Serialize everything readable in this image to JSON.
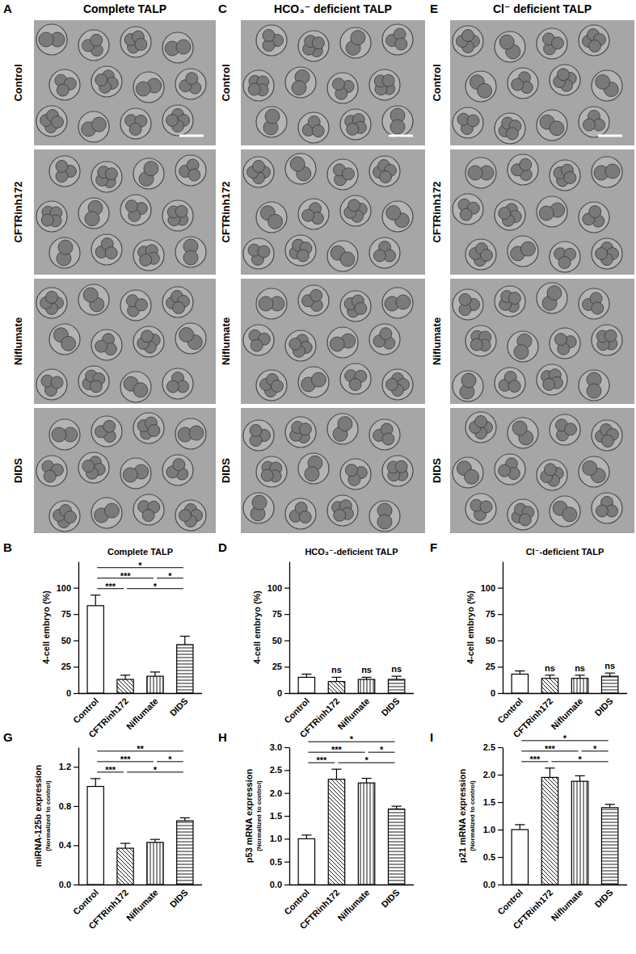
{
  "image_grid": {
    "rows": [
      "Control",
      "CFTRinh172",
      "Niflumate",
      "DIDS"
    ],
    "columns": [
      {
        "panel": "A",
        "title": "Complete TALP"
      },
      {
        "panel": "C",
        "title": "HCO₃⁻ deficient TALP"
      },
      {
        "panel": "E",
        "title": "Cl⁻ deficient TALP"
      }
    ]
  },
  "chart_data": [
    {
      "panel": "B",
      "type": "bar",
      "title": "Complete TALP",
      "ylabel": "4-cell embryo (%)",
      "categories": [
        "Control",
        "CFTRinh172",
        "Niflumate",
        "DIDS"
      ],
      "values": [
        83,
        13,
        16,
        46
      ],
      "errors": [
        10,
        4,
        4,
        8
      ],
      "color": "#ffffff",
      "ylim": [
        0,
        125
      ],
      "yticks": [
        0,
        25,
        50,
        75,
        100
      ],
      "annotations": [
        {
          "from": "Control",
          "to": "CFTRinh172",
          "text": "***"
        },
        {
          "from": "CFTRinh172",
          "to": "DIDS",
          "text": "*"
        },
        {
          "from": "Control",
          "to": "Niflumate",
          "text": "***"
        },
        {
          "from": "Niflumate",
          "to": "DIDS",
          "text": "*"
        },
        {
          "from": "Control",
          "to": "DIDS",
          "text": "*"
        }
      ]
    },
    {
      "panel": "D",
      "type": "bar",
      "title": "HCO₃⁻-deficient TALP",
      "ylabel": "4-cell embryo (%)",
      "categories": [
        "Control",
        "CFTRinh172",
        "Niflumate",
        "DIDS"
      ],
      "values": [
        15,
        11,
        13,
        13
      ],
      "errors": [
        3,
        4,
        2,
        3
      ],
      "color": "#ffffff",
      "ylim": [
        0,
        125
      ],
      "yticks": [
        0,
        25,
        50,
        75,
        100
      ],
      "annotations": [
        {
          "category": "CFTRinh172",
          "text": "ns"
        },
        {
          "category": "Niflumate",
          "text": "ns"
        },
        {
          "category": "DIDS",
          "text": "ns"
        }
      ]
    },
    {
      "panel": "F",
      "type": "bar",
      "title": "Cl⁻-deficient TALP",
      "ylabel": "4-cell embryo (%)",
      "categories": [
        "Control",
        "CFTRinh172",
        "Niflumate",
        "DIDS"
      ],
      "values": [
        18,
        14,
        14,
        16
      ],
      "errors": [
        3,
        3,
        3,
        3
      ],
      "color": "#ffffff",
      "ylim": [
        0,
        125
      ],
      "yticks": [
        0,
        25,
        50,
        75,
        100
      ],
      "annotations": [
        {
          "category": "CFTRinh172",
          "text": "ns"
        },
        {
          "category": "Niflumate",
          "text": "ns"
        },
        {
          "category": "DIDS",
          "text": "ns"
        }
      ]
    },
    {
      "panel": "G",
      "type": "bar",
      "ylabel": "miRNA-125b expression",
      "ylabel_note": "(Normalized to control)",
      "categories": [
        "Control",
        "CFTRinh172",
        "Niflumate",
        "DIDS"
      ],
      "values": [
        1.0,
        0.37,
        0.43,
        0.65
      ],
      "errors": [
        0.08,
        0.05,
        0.03,
        0.03
      ],
      "color": "#ffffff",
      "ylim": [
        0,
        1.4
      ],
      "yticks": [
        {
          "value": 0,
          "label": "0.0"
        },
        {
          "value": 0.4,
          "label": "0.4"
        },
        {
          "value": 0.8,
          "label": "0.8"
        },
        {
          "value": 1.2,
          "label": "1.2"
        }
      ],
      "annotations": [
        {
          "from": "Control",
          "to": "CFTRinh172",
          "text": "***"
        },
        {
          "from": "CFTRinh172",
          "to": "DIDS",
          "text": "*"
        },
        {
          "from": "Control",
          "to": "Niflumate",
          "text": "***"
        },
        {
          "from": "Niflumate",
          "to": "DIDS",
          "text": "*"
        },
        {
          "from": "Control",
          "to": "DIDS",
          "text": "**"
        }
      ]
    },
    {
      "panel": "H",
      "type": "bar",
      "ylabel": "p53 mRNA expression",
      "ylabel_note": "(Normalized to control)",
      "categories": [
        "Control",
        "CFTRinh172",
        "Niflumate",
        "DIDS"
      ],
      "values": [
        1.0,
        2.3,
        2.22,
        1.65
      ],
      "errors": [
        0.08,
        0.22,
        0.1,
        0.06
      ],
      "color": "#ffffff",
      "ylim": [
        0,
        3
      ],
      "yticks": [
        {
          "value": 0,
          "label": "0.0"
        },
        {
          "value": 0.5,
          "label": "0.5"
        },
        {
          "value": 1,
          "label": "1.0"
        },
        {
          "value": 1.5,
          "label": "1.5"
        },
        {
          "value": 2,
          "label": "2.0"
        },
        {
          "value": 2.5,
          "label": "2.5"
        },
        {
          "value": 3,
          "label": "3.0"
        }
      ],
      "annotations": [
        {
          "from": "Control",
          "to": "CFTRinh172",
          "text": "***"
        },
        {
          "from": "CFTRinh172",
          "to": "DIDS",
          "text": "*"
        },
        {
          "from": "Control",
          "to": "Niflumate",
          "text": "***"
        },
        {
          "from": "Niflumate",
          "to": "DIDS",
          "text": "*"
        },
        {
          "from": "Control",
          "to": "DIDS",
          "text": "*"
        }
      ]
    },
    {
      "panel": "I",
      "type": "bar",
      "ylabel": "p21 mRNA expression",
      "ylabel_note": "(Normalized to control)",
      "categories": [
        "Control",
        "CFTRinh172",
        "Niflumate",
        "DIDS"
      ],
      "values": [
        1.0,
        1.95,
        1.88,
        1.4
      ],
      "errors": [
        0.09,
        0.17,
        0.1,
        0.06
      ],
      "color": "#ffffff",
      "ylim": [
        0,
        2.5
      ],
      "yticks": [
        {
          "value": 0,
          "label": "0.0"
        },
        {
          "value": 0.5,
          "label": "0.5"
        },
        {
          "value": 1,
          "label": "1.0"
        },
        {
          "value": 1.5,
          "label": "1.5"
        },
        {
          "value": 2,
          "label": "2.0"
        },
        {
          "value": 2.5,
          "label": "2.5"
        }
      ],
      "annotations": [
        {
          "from": "Control",
          "to": "CFTRinh172",
          "text": "***"
        },
        {
          "from": "CFTRinh172",
          "to": "DIDS",
          "text": "*"
        },
        {
          "from": "Control",
          "to": "Niflumate",
          "text": "***"
        },
        {
          "from": "Niflumate",
          "to": "DIDS",
          "text": "*"
        },
        {
          "from": "Control",
          "to": "DIDS",
          "text": "*"
        }
      ]
    }
  ]
}
